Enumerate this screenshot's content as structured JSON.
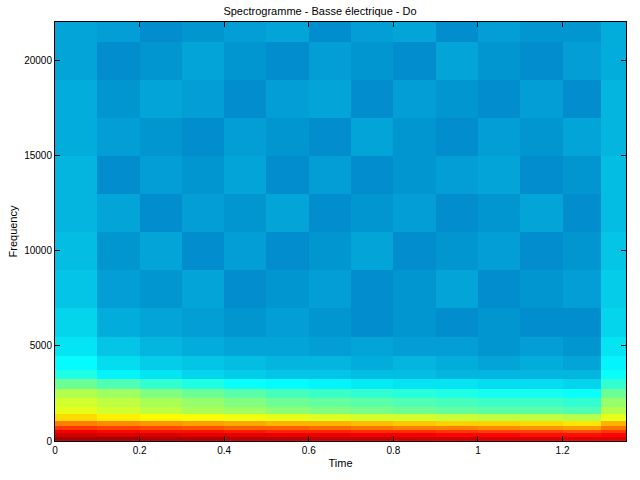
{
  "chart_data": {
    "type": "heatmap",
    "title": "Spectrogramme - Basse électrique - Do",
    "x_label": "Time",
    "y_label": "Frequency",
    "x": [
      0.05,
      0.15,
      0.25,
      0.35,
      0.45,
      0.55,
      0.65,
      0.75,
      0.85,
      0.95,
      1.05,
      1.15,
      1.25,
      1.33
    ],
    "y": [
      100,
      300,
      500,
      700,
      900,
      1200,
      1600,
      2000,
      2500,
      3000,
      3500,
      4000,
      5000,
      6000,
      8000,
      10000,
      12000,
      14000,
      16000,
      18000,
      20000,
      22000
    ],
    "z": [
      [
        -4,
        -4,
        -5,
        -5,
        -6,
        -6,
        -7,
        -7,
        -8,
        -8,
        -9,
        -9,
        -10,
        -10
      ],
      [
        -8,
        -9,
        -9,
        -10,
        -10,
        -11,
        -11,
        -12,
        -12,
        -13,
        -13,
        -14,
        -14,
        -13
      ],
      [
        -12,
        -13,
        -14,
        -14,
        -15,
        -16,
        -16,
        -17,
        -17,
        -18,
        -19,
        -19,
        -20,
        -18
      ],
      [
        -18,
        -19,
        -20,
        -21,
        -22,
        -22,
        -23,
        -24,
        -25,
        -25,
        -26,
        -27,
        -28,
        -24
      ],
      [
        -25,
        -26,
        -27,
        -28,
        -29,
        -30,
        -30,
        -31,
        -32,
        -33,
        -33,
        -34,
        -35,
        -30
      ],
      [
        -34,
        -36,
        -37,
        -38,
        -39,
        -40,
        -41,
        -42,
        -42,
        -43,
        -44,
        -44,
        -45,
        -40
      ],
      [
        -40,
        -42,
        -44,
        -46,
        -47,
        -49,
        -50,
        -51,
        -52,
        -53,
        -54,
        -54,
        -55,
        -45
      ],
      [
        -42,
        -44,
        -46,
        -48,
        -50,
        -52,
        -53,
        -54,
        -55,
        -56,
        -57,
        -57,
        -58,
        -48
      ],
      [
        -45,
        -47,
        -50,
        -52,
        -54,
        -56,
        -57,
        -58,
        -59,
        -60,
        -61,
        -61,
        -62,
        -52
      ],
      [
        -52,
        -55,
        -58,
        -60,
        -62,
        -63,
        -64,
        -65,
        -66,
        -66,
        -67,
        -67,
        -68,
        -58
      ],
      [
        -60,
        -64,
        -66,
        -68,
        -69,
        -70,
        -70,
        -71,
        -71,
        -72,
        -72,
        -72,
        -72,
        -62
      ],
      [
        -63,
        -67,
        -69,
        -70,
        -71,
        -72,
        -72,
        -73,
        -72,
        -73,
        -74,
        -73,
        -74,
        -64
      ],
      [
        -66,
        -70,
        -72,
        -73,
        -74,
        -74,
        -75,
        -74,
        -75,
        -75,
        -76,
        -75,
        -76,
        -66
      ],
      [
        -68,
        -73,
        -74,
        -75,
        -76,
        -75,
        -76,
        -77,
        -76,
        -77,
        -76,
        -77,
        -77,
        -68
      ],
      [
        -70,
        -75,
        -76,
        -74,
        -77,
        -76,
        -75,
        -77,
        -76,
        -74,
        -77,
        -76,
        -75,
        -69
      ],
      [
        -71,
        -76,
        -74,
        -77,
        -75,
        -77,
        -76,
        -74,
        -77,
        -76,
        -75,
        -77,
        -76,
        -70
      ],
      [
        -72,
        -74,
        -77,
        -75,
        -76,
        -74,
        -77,
        -76,
        -75,
        -77,
        -76,
        -74,
        -77,
        -71
      ],
      [
        -72,
        -77,
        -75,
        -76,
        -74,
        -77,
        -75,
        -77,
        -76,
        -75,
        -74,
        -77,
        -76,
        -71
      ],
      [
        -73,
        -75,
        -76,
        -77,
        -75,
        -76,
        -77,
        -74,
        -76,
        -77,
        -75,
        -76,
        -74,
        -72
      ],
      [
        -73,
        -76,
        -74,
        -75,
        -77,
        -75,
        -74,
        -77,
        -75,
        -76,
        -77,
        -75,
        -77,
        -72
      ],
      [
        -74,
        -77,
        -76,
        -74,
        -76,
        -77,
        -75,
        -76,
        -77,
        -74,
        -76,
        -77,
        -75,
        -73
      ],
      [
        -74,
        -75,
        -77,
        -76,
        -75,
        -74,
        -77,
        -75,
        -74,
        -77,
        -75,
        -76,
        -76,
        -73
      ]
    ],
    "zlim": [
      -100,
      0
    ],
    "xlim": [
      0,
      1.35
    ],
    "xticks": [
      0,
      0.2,
      0.4,
      0.6,
      0.8,
      1,
      1.2
    ],
    "ylim": [
      0,
      22050
    ],
    "yticks": [
      0,
      5000,
      10000,
      15000,
      20000
    ],
    "grid": false
  }
}
